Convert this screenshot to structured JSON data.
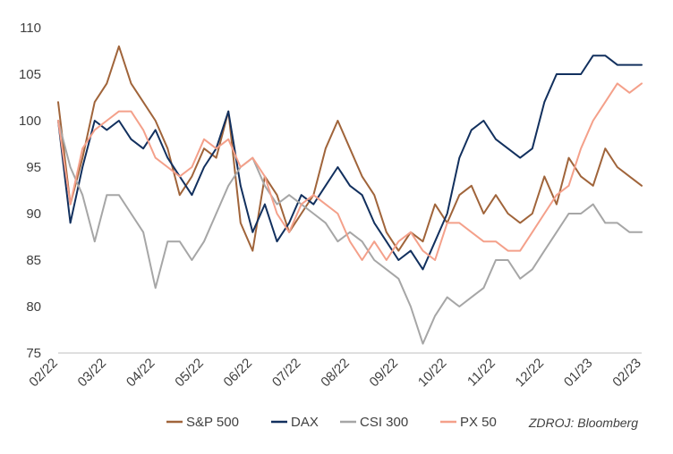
{
  "chart_data": {
    "type": "line",
    "ylim": [
      75,
      110
    ],
    "yticks": [
      75,
      80,
      85,
      90,
      95,
      100,
      105,
      110
    ],
    "xticks": [
      "02/22",
      "03/22",
      "04/22",
      "05/22",
      "06/22",
      "07/22",
      "08/22",
      "09/22",
      "10/22",
      "11/22",
      "12/22",
      "01/23",
      "02/23"
    ],
    "grid": false,
    "legend_position": "bottom",
    "source_note": "ZDROJ: Bloomberg",
    "series": [
      {
        "name": "S&P 500",
        "color": "#a0643a",
        "x": [
          0,
          0.25,
          0.5,
          0.75,
          1,
          1.25,
          1.5,
          1.75,
          2,
          2.25,
          2.5,
          2.75,
          3,
          3.25,
          3.5,
          3.75,
          4,
          4.25,
          4.5,
          4.75,
          5,
          5.25,
          5.5,
          5.75,
          6,
          6.25,
          6.5,
          6.75,
          7,
          7.25,
          7.5,
          7.75,
          8,
          8.25,
          8.5,
          8.75,
          9,
          9.25,
          9.5,
          9.75,
          10,
          10.25,
          10.5,
          10.75,
          11,
          11.25,
          11.5,
          11.75,
          12
        ],
        "values": [
          102,
          91,
          96,
          102,
          104,
          108,
          104,
          102,
          100,
          97,
          92,
          94,
          97,
          96,
          101,
          89,
          86,
          94,
          92,
          88,
          90,
          92,
          97,
          100,
          97,
          94,
          92,
          88,
          86,
          88,
          87,
          91,
          89,
          92,
          93,
          90,
          92,
          90,
          89,
          90,
          94,
          91,
          96,
          94,
          93,
          97,
          95,
          94,
          93
        ]
      },
      {
        "name": "DAX",
        "color": "#12305e",
        "x": [
          0,
          0.25,
          0.5,
          0.75,
          1,
          1.25,
          1.5,
          1.75,
          2,
          2.25,
          2.5,
          2.75,
          3,
          3.25,
          3.5,
          3.75,
          4,
          4.25,
          4.5,
          4.75,
          5,
          5.25,
          5.5,
          5.75,
          6,
          6.25,
          6.5,
          6.75,
          7,
          7.25,
          7.5,
          7.75,
          8,
          8.25,
          8.5,
          8.75,
          9,
          9.25,
          9.5,
          9.75,
          10,
          10.25,
          10.5,
          10.75,
          11,
          11.25,
          11.5,
          11.75,
          12
        ],
        "values": [
          100,
          89,
          95,
          100,
          99,
          100,
          98,
          97,
          99,
          96,
          94,
          92,
          95,
          97,
          101,
          93,
          88,
          91,
          87,
          89,
          92,
          91,
          93,
          95,
          93,
          92,
          89,
          87,
          85,
          86,
          84,
          87,
          90,
          96,
          99,
          100,
          98,
          97,
          96,
          97,
          102,
          105,
          105,
          105,
          107,
          107,
          106,
          106,
          106
        ]
      },
      {
        "name": "CSI 300",
        "color": "#a6a6a6",
        "x": [
          0,
          0.25,
          0.5,
          0.75,
          1,
          1.25,
          1.5,
          1.75,
          2,
          2.25,
          2.5,
          2.75,
          3,
          3.25,
          3.5,
          3.75,
          4,
          4.25,
          4.5,
          4.75,
          5,
          5.25,
          5.5,
          5.75,
          6,
          6.25,
          6.5,
          6.75,
          7,
          7.25,
          7.5,
          7.75,
          8,
          8.25,
          8.5,
          8.75,
          9,
          9.25,
          9.5,
          9.75,
          10,
          10.25,
          10.5,
          10.75,
          11,
          11.25,
          11.5,
          11.75,
          12
        ],
        "values": [
          100,
          95,
          92,
          87,
          92,
          92,
          90,
          88,
          82,
          87,
          87,
          85,
          87,
          90,
          93,
          95,
          96,
          93,
          91,
          92,
          91,
          90,
          89,
          87,
          88,
          87,
          85,
          84,
          83,
          80,
          76,
          79,
          81,
          80,
          81,
          82,
          85,
          85,
          83,
          84,
          86,
          88,
          90,
          90,
          91,
          89,
          89,
          88,
          88
        ]
      },
      {
        "name": "PX 50",
        "color": "#f4a08a",
        "x": [
          0,
          0.25,
          0.5,
          0.75,
          1,
          1.25,
          1.5,
          1.75,
          2,
          2.25,
          2.5,
          2.75,
          3,
          3.25,
          3.5,
          3.75,
          4,
          4.25,
          4.5,
          4.75,
          5,
          5.25,
          5.5,
          5.75,
          6,
          6.25,
          6.5,
          6.75,
          7,
          7.25,
          7.5,
          7.75,
          8,
          8.25,
          8.5,
          8.75,
          9,
          9.25,
          9.5,
          9.75,
          10,
          10.25,
          10.5,
          10.75,
          11,
          11.25,
          11.5,
          11.75,
          12
        ],
        "values": [
          100,
          91,
          97,
          99,
          100,
          101,
          101,
          99,
          96,
          95,
          94,
          95,
          98,
          97,
          98,
          95,
          96,
          94,
          90,
          88,
          91,
          92,
          91,
          90,
          87,
          85,
          87,
          85,
          87,
          88,
          86,
          85,
          89,
          89,
          88,
          87,
          87,
          86,
          86,
          88,
          90,
          92,
          93,
          97,
          100,
          102,
          104,
          103,
          104
        ]
      }
    ]
  }
}
